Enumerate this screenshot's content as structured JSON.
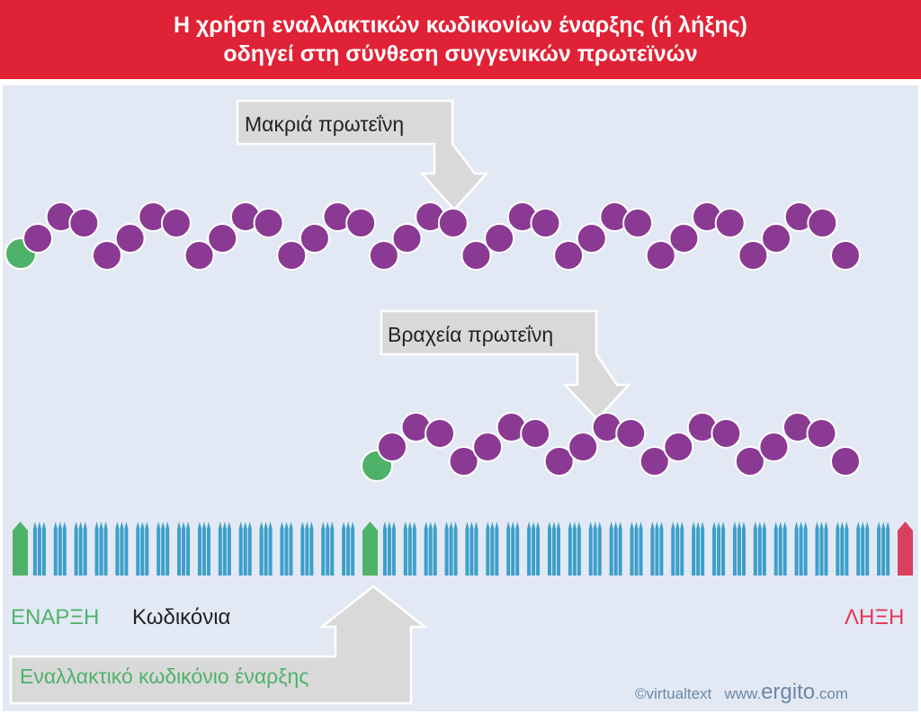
{
  "title": {
    "line1": "Η χρήση εναλλακτικών κωδικονίων έναρξης (ή λήξης)",
    "line2": "οδηγεί στη σύνθεση συγγενικών πρωτεϊνών"
  },
  "callouts": {
    "long_protein": "Μακριά πρωτεΐνη",
    "short_protein": "Βραχεία πρωτεΐνη",
    "alt_start": "Εναλλακτικό κωδικόνιο έναρξης"
  },
  "labels": {
    "start": "ΕΝΑΡΞΗ",
    "codons": "Κωδικόνια",
    "stop": "ΛΗΞΗ"
  },
  "credit": {
    "copyright": "©virtualtext",
    "www": "www.",
    "brand": "ergito",
    "tld": ".com"
  },
  "colors": {
    "title_bg": "#e02236",
    "panel_bg": "#e3e9f4",
    "amino_acid": "#8b3a94",
    "start_residue": "#4fb26a",
    "start_codon": "#4fb26a",
    "stop_codon": "#d9405f",
    "codon": "#3c9fca",
    "callout_fill": "#d9d9d9",
    "start_text": "#4fb26a",
    "stop_text": "#e3365a"
  },
  "proteins": {
    "long": {
      "n_amino_acids": 36
    },
    "short": {
      "n_amino_acids": 20
    }
  },
  "codons": {
    "total": 44,
    "start_index": 0,
    "alt_start_index": 17,
    "stop_index": 43
  }
}
